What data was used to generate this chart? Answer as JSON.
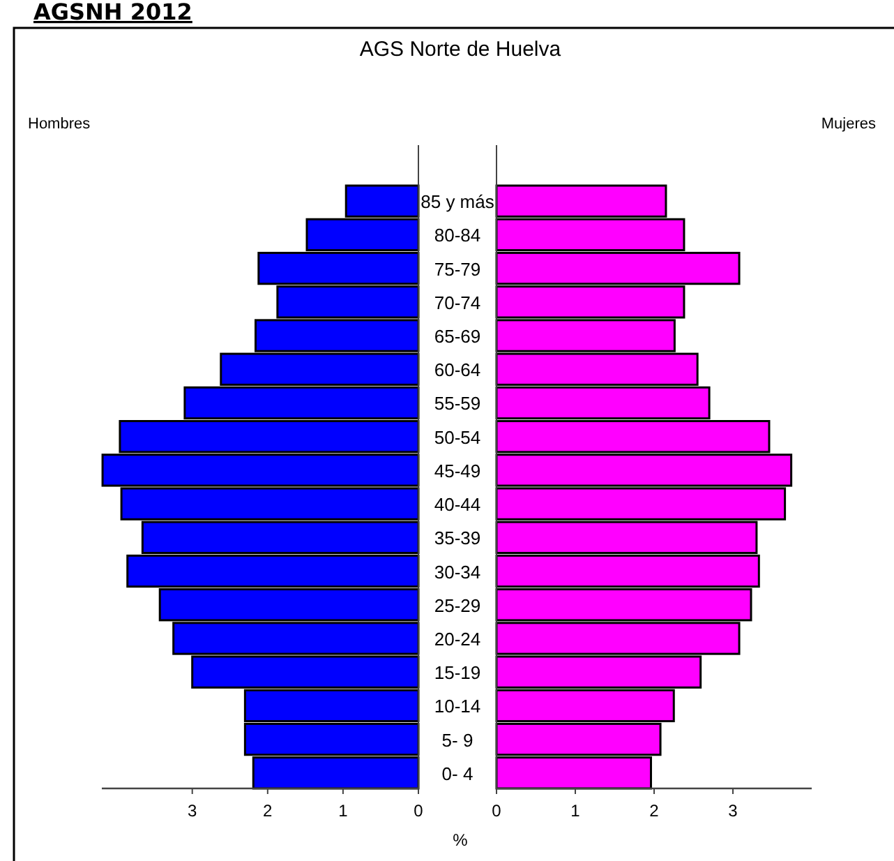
{
  "chart_data": [
    {
      "type": "bar",
      "orientation": "horizontal",
      "title": "AGSNH 2012",
      "subtitle": "AGS Norte de Huelva",
      "ylabel": "Hombres",
      "categories": [
        "85 y más",
        "80-84",
        "75-79",
        "70-74",
        "65-69",
        "60-64",
        "55-59",
        "50-54",
        "45-49",
        "40-44",
        "35-39",
        "30-34",
        "25-29",
        "20-24",
        "15-19",
        "10-14",
        "5- 9",
        "0- 4"
      ],
      "series": [
        {
          "color": "#0000ff",
          "values": [
            0.96,
            1.48,
            2.12,
            1.87,
            2.16,
            2.62,
            3.1,
            3.96,
            4.19,
            3.94,
            3.66,
            3.86,
            3.43,
            3.25,
            3.0,
            2.3,
            2.3,
            2.19
          ]
        }
      ],
      "xlim": [
        4.2,
        0
      ],
      "xticks": [
        3,
        2,
        1,
        0
      ],
      "grid": false
    },
    {
      "type": "bar",
      "orientation": "horizontal",
      "ylabel": "Mujeres",
      "xlabel": "%",
      "categories": [
        null,
        null,
        null,
        null,
        null,
        null,
        null,
        null,
        null,
        null,
        null,
        null,
        null,
        null,
        null,
        null,
        null,
        null
      ],
      "series": [
        {
          "color": "#ff00ff",
          "values": [
            2.15,
            2.38,
            3.08,
            2.38,
            2.26,
            2.55,
            2.7,
            3.46,
            3.74,
            3.66,
            3.3,
            3.33,
            3.23,
            3.08,
            2.59,
            2.25,
            2.08,
            1.96
          ]
        }
      ],
      "xlim": [
        0,
        4
      ],
      "xticks": [
        0,
        1,
        2,
        3
      ],
      "grid": false
    }
  ]
}
